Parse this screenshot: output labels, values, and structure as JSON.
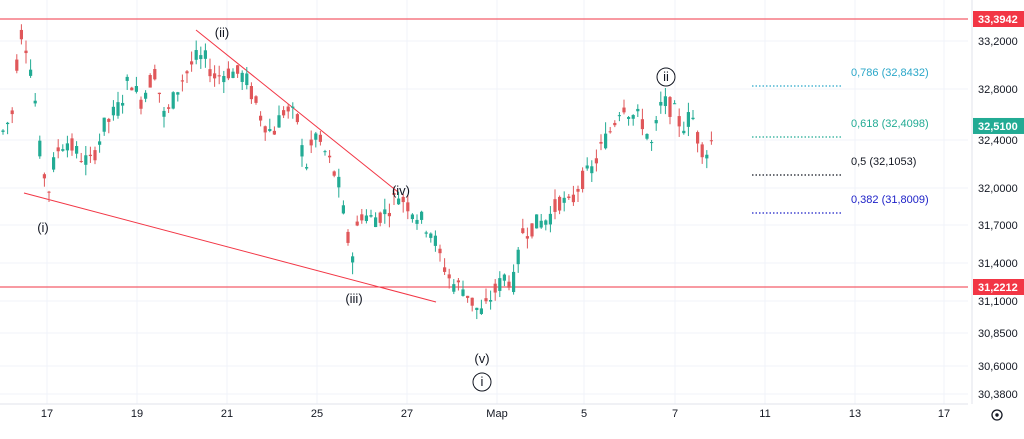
{
  "chart_data": {
    "type": "candlestick",
    "y_ticks": [
      "33,2000",
      "32,8000",
      "32,4000",
      "32,0000",
      "31,7000",
      "31,4000",
      "31,1000",
      "30,8500",
      "30,6000",
      "30,3800"
    ],
    "y_tick_values": [
      33.2,
      32.8,
      32.4,
      32.0,
      31.7,
      31.4,
      31.1,
      30.85,
      30.6,
      30.38
    ],
    "x_ticks": [
      "17",
      "19",
      "21",
      "25",
      "27",
      "Мар",
      "5",
      "7",
      "11",
      "13",
      "17"
    ],
    "horizontal_levels": [
      {
        "label": "33,3942",
        "value": 33.3942,
        "color": "#f23645"
      },
      {
        "label": "31,2212",
        "value": 31.2212,
        "color": "#f23645"
      }
    ],
    "last_price": {
      "label": "32,5100",
      "value": 32.51,
      "color": "#22ab94"
    },
    "fib_levels": [
      {
        "ratio": "0,786",
        "text": "0,786 (32,8432)",
        "value": 32.8432,
        "color": "#2aa7c9"
      },
      {
        "ratio": "0,618",
        "text": "0,618 (32,4098)",
        "value": 32.4098,
        "color": "#22ab94"
      },
      {
        "ratio": "0,5",
        "text": "0,5 (32,1053)",
        "value": 32.1053,
        "color": "#131722"
      },
      {
        "ratio": "0,382",
        "text": "0,382 (31,8009)",
        "value": 31.8009,
        "color": "#1e22c8"
      }
    ],
    "wave_labels": [
      {
        "text": "(i)",
        "circled": false
      },
      {
        "text": "(ii)",
        "circled": false
      },
      {
        "text": "(iii)",
        "circled": false
      },
      {
        "text": "(iv)",
        "circled": false
      },
      {
        "text": "(v)",
        "circled": false
      },
      {
        "text": "i",
        "circled": true
      },
      {
        "text": "ii",
        "circled": true
      }
    ],
    "ylim": [
      30.28,
      33.5
    ],
    "grid": true,
    "colors": {
      "up": "#22ab94",
      "down": "#e0575a",
      "trendline": "#f23645"
    }
  },
  "icons": {
    "settings": "settings-gear-icon"
  }
}
